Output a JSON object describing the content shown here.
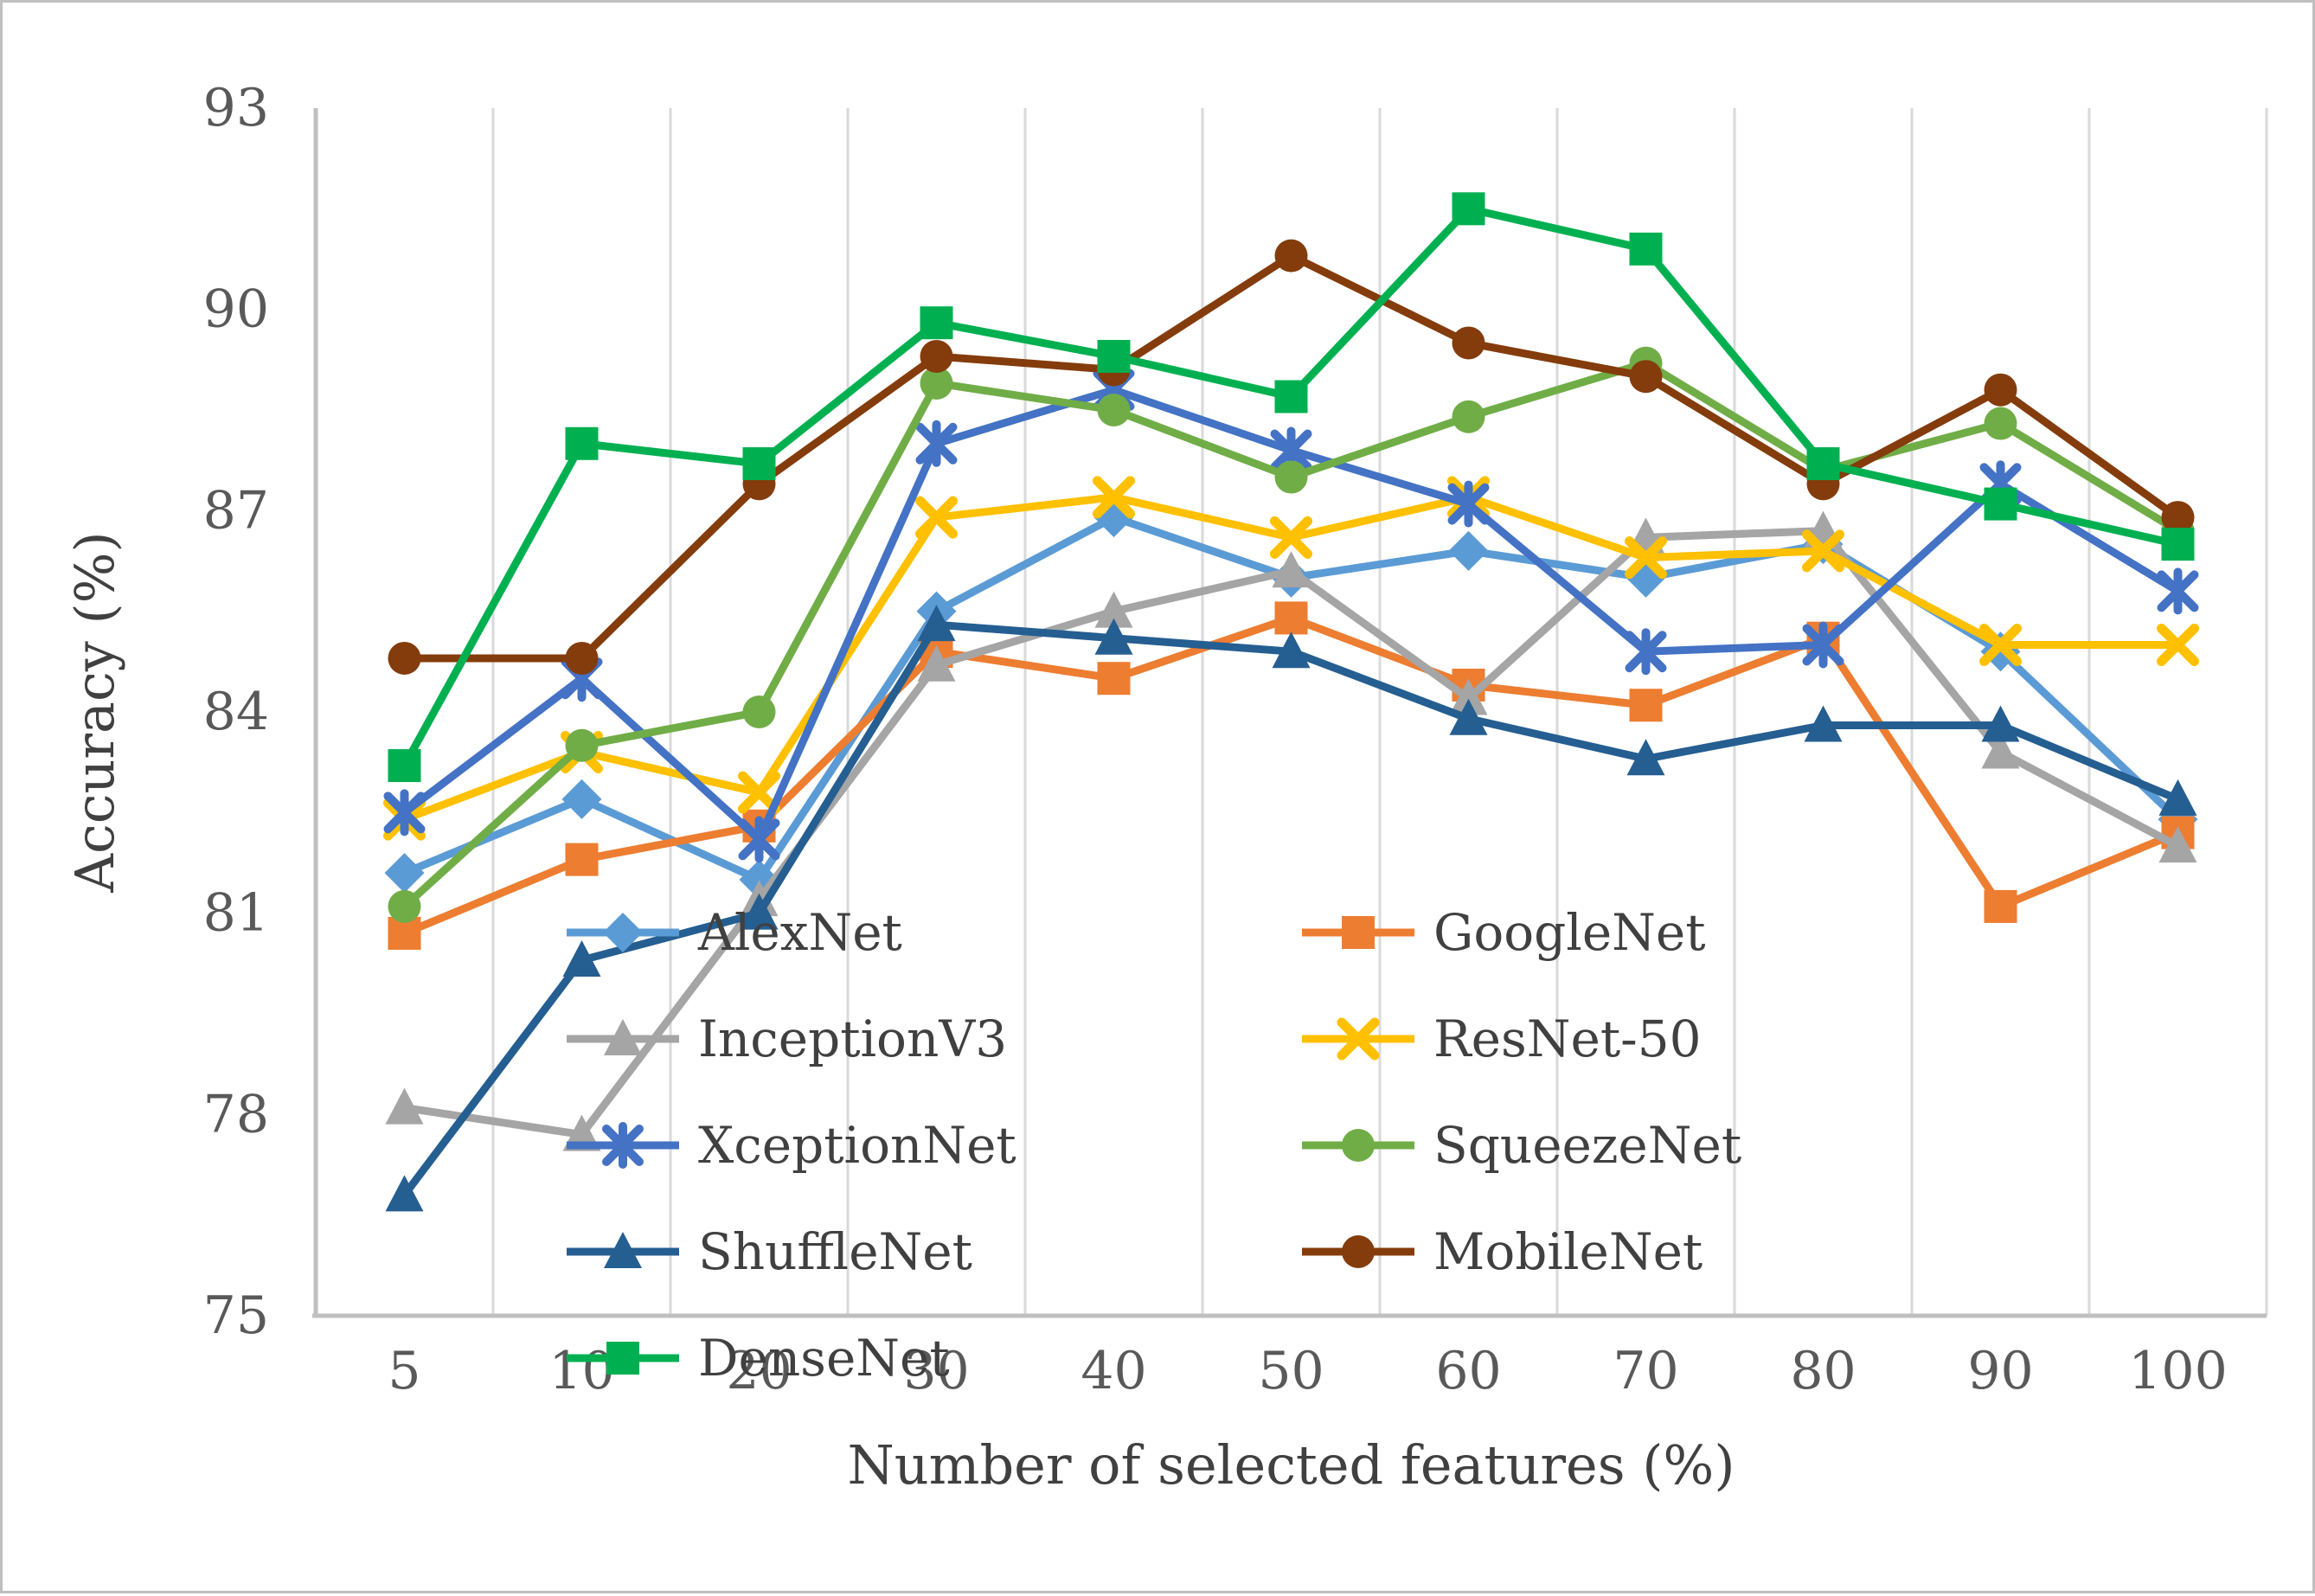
{
  "chart_data": {
    "type": "line",
    "title": "",
    "xlabel": "Number of selected features (%)",
    "ylabel": "Accuracy (%)",
    "categories": [
      5,
      10,
      20,
      30,
      40,
      50,
      60,
      70,
      80,
      90,
      100
    ],
    "ylim": [
      75,
      93
    ],
    "ytick_step": 3,
    "yticks": [
      75,
      78,
      81,
      84,
      87,
      90,
      93
    ],
    "grid": "vertical-only",
    "legend_position": "inside-bottom-center, two columns",
    "series": [
      {
        "name": "AlexNet",
        "color": "#5B9BD5",
        "marker": "diamond",
        "values": [
          81.6,
          82.7,
          81.5,
          85.5,
          86.9,
          86.0,
          86.4,
          86.0,
          86.5,
          84.9,
          82.4
        ]
      },
      {
        "name": "GoogleNet",
        "color": "#ED7D31",
        "marker": "square",
        "values": [
          80.7,
          81.8,
          82.3,
          84.9,
          84.5,
          85.4,
          84.4,
          84.1,
          85.1,
          81.1,
          82.2
        ]
      },
      {
        "name": "InceptionV3",
        "color": "#A5A5A5",
        "marker": "triangle",
        "values": [
          78.1,
          77.7,
          81.2,
          84.7,
          85.5,
          86.1,
          84.2,
          86.6,
          86.7,
          83.4,
          82.0
        ]
      },
      {
        "name": "ResNet-50",
        "color": "#FFC000",
        "marker": "x",
        "values": [
          82.4,
          83.4,
          82.8,
          86.9,
          87.2,
          86.6,
          87.2,
          86.3,
          86.4,
          85.0,
          85.0
        ]
      },
      {
        "name": "XceptionNet",
        "color": "#4472C4",
        "marker": "asterisk",
        "values": [
          82.5,
          84.5,
          82.1,
          88.0,
          88.8,
          87.9,
          87.1,
          84.9,
          85.0,
          87.4,
          85.8
        ]
      },
      {
        "name": "SqueezeNet",
        "color": "#70AD47",
        "marker": "circle",
        "values": [
          81.1,
          83.5,
          84.0,
          88.9,
          88.5,
          87.5,
          88.4,
          89.2,
          87.6,
          88.3,
          86.7
        ]
      },
      {
        "name": "ShuffleNet",
        "color": "#255E91",
        "marker": "triangle",
        "values": [
          76.8,
          80.3,
          81.0,
          85.3,
          85.1,
          84.9,
          83.9,
          83.3,
          83.8,
          83.8,
          82.7
        ]
      },
      {
        "name": "MobileNet",
        "color": "#843C0C",
        "marker": "circle",
        "values": [
          84.8,
          84.8,
          87.4,
          89.3,
          89.1,
          90.8,
          89.5,
          89.0,
          87.4,
          88.8,
          86.9
        ]
      },
      {
        "name": "DenseNet",
        "color": "#00B050",
        "marker": "square",
        "values": [
          83.2,
          88.0,
          87.7,
          89.8,
          89.3,
          88.7,
          91.5,
          90.9,
          87.7,
          87.1,
          86.5
        ]
      }
    ],
    "legend_columns": [
      [
        "AlexNet",
        "InceptionV3",
        "XceptionNet",
        "ShuffleNet",
        "DenseNet"
      ],
      [
        "GoogleNet",
        "ResNet-50",
        "SqueezeNet",
        "MobileNet"
      ]
    ]
  },
  "style": {
    "tick_color": "#595959",
    "title_color": "#404040",
    "gridline_color": "#D9D9D9",
    "axisline_color": "#BFBFBF",
    "background": "#FFFFFF"
  }
}
